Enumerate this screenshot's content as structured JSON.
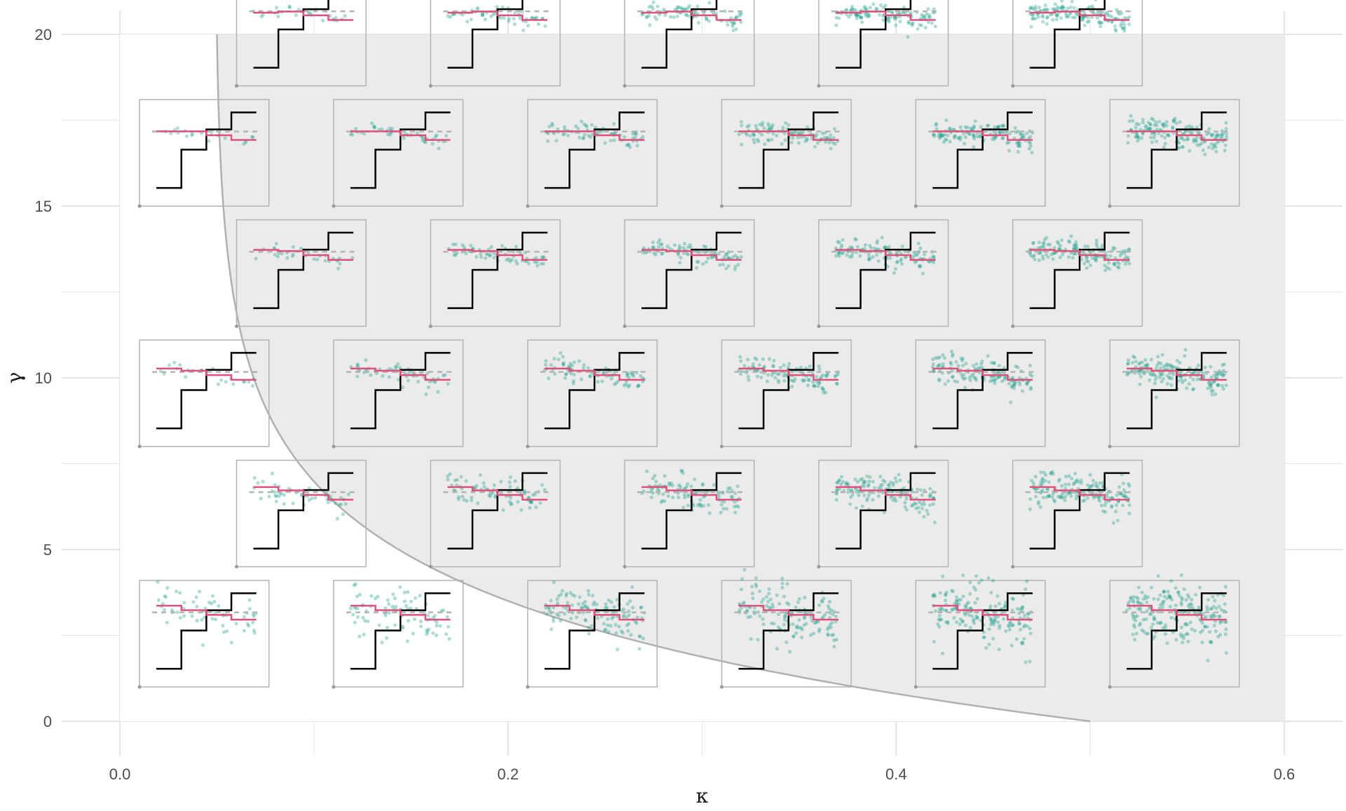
{
  "chart_data": {
    "type": "scatter",
    "title": "",
    "xlabel": "κ",
    "ylabel": "γ",
    "xlim": [
      -0.03,
      0.63
    ],
    "ylim": [
      -1.0,
      21.0
    ],
    "x_ticks": [
      0.0,
      0.2,
      0.4,
      0.6
    ],
    "x_tick_labels": [
      "0.0",
      "0.2",
      "0.4",
      "0.6"
    ],
    "y_ticks": [
      0,
      5,
      10,
      15,
      20
    ],
    "y_tick_labels": [
      "0",
      "5",
      "10",
      "15",
      "20"
    ],
    "shaded_region": {
      "x": [
        0.0,
        0.6
      ],
      "y": [
        0,
        20
      ]
    },
    "boundary_curve_kappa_at_gamma_zero": 0.5,
    "boundary_curve_kappa_at_gamma_twenty": 0.05,
    "grid": true,
    "colors": {
      "background_panel": "#ebebeb",
      "grid_line": "#e4e4e4",
      "boundary_curve": "#b0b0b0",
      "inset_border": "#b3b3b3",
      "scatter_points": "#1b9e8a",
      "fitted_step_line": "#e0507a",
      "true_step_line": "#000000",
      "reference_dashed_line": "#b3b3b3"
    },
    "inset_grid": {
      "kappa_values_odd_rows": [
        0.0,
        0.1,
        0.2,
        0.3,
        0.4,
        0.5
      ],
      "kappa_values_even_rows": [
        0.05,
        0.15,
        0.25,
        0.35,
        0.45
      ],
      "gamma_rows": [
        1,
        4.5,
        8,
        11.5,
        15,
        18.5
      ],
      "inset_width_kappa": 0.0667,
      "inset_height_gamma": 3.1
    },
    "inset_series": [
      {
        "name": "points"
      },
      {
        "name": "fitted"
      },
      {
        "name": "truth"
      },
      {
        "name": "reference"
      }
    ]
  }
}
